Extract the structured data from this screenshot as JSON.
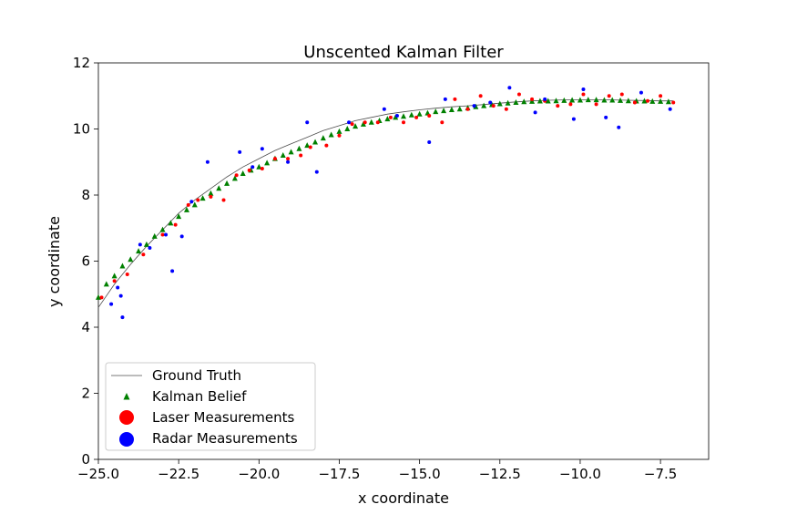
{
  "chart_data": {
    "type": "scatter",
    "title": "Unscented Kalman Filter",
    "xlabel": "x coordinate",
    "ylabel": "y coordinate",
    "xlim": [
      -25,
      -6
    ],
    "ylim": [
      0,
      12
    ],
    "xticks": [
      -25.0,
      -22.5,
      -20.0,
      -17.5,
      -15.0,
      -12.5,
      -10.0,
      -7.5
    ],
    "xtick_labels": [
      "−25.0",
      "−22.5",
      "−20.0",
      "−17.5",
      "−15.0",
      "−12.5",
      "−10.0",
      "−7.5"
    ],
    "yticks": [
      0,
      2,
      4,
      6,
      8,
      10,
      12
    ],
    "ytick_labels": [
      "0",
      "2",
      "4",
      "6",
      "8",
      "10",
      "12"
    ],
    "grid": false,
    "legend_position": "lower-left",
    "colors": {
      "ground_truth": "#4d4d4d",
      "kalman": "#008000",
      "laser": "#ff0000",
      "radar": "#0000ff"
    },
    "series": [
      {
        "name": "Ground Truth",
        "type": "line",
        "x": [
          -25.0,
          -24.5,
          -24.0,
          -23.5,
          -23.0,
          -22.5,
          -22.0,
          -21.5,
          -21.0,
          -20.5,
          -20.0,
          -19.5,
          -19.0,
          -18.5,
          -18.0,
          -17.5,
          -17.0,
          -16.5,
          -16.0,
          -15.5,
          -15.0,
          -14.5,
          -14.0,
          -13.5,
          -13.0,
          -12.5,
          -12.0,
          -11.5,
          -11.0,
          -10.5,
          -10.0,
          -9.5,
          -9.0,
          -8.5,
          -8.0,
          -7.5,
          -7.1
        ],
        "y": [
          4.6,
          5.3,
          5.9,
          6.45,
          6.95,
          7.45,
          7.85,
          8.2,
          8.55,
          8.85,
          9.1,
          9.35,
          9.55,
          9.75,
          9.95,
          10.1,
          10.25,
          10.35,
          10.45,
          10.52,
          10.58,
          10.63,
          10.67,
          10.7,
          10.74,
          10.78,
          10.82,
          10.85,
          10.87,
          10.88,
          10.88,
          10.88,
          10.88,
          10.87,
          10.86,
          10.85,
          10.85
        ]
      },
      {
        "name": "Kalman Belief",
        "type": "scatter",
        "marker": "triangle",
        "x": [
          -25.0,
          -24.75,
          -24.5,
          -24.25,
          -24.0,
          -23.75,
          -23.5,
          -23.25,
          -23.0,
          -22.75,
          -22.5,
          -22.25,
          -22.0,
          -21.75,
          -21.5,
          -21.25,
          -21.0,
          -20.75,
          -20.5,
          -20.25,
          -20.0,
          -19.75,
          -19.5,
          -19.25,
          -19.0,
          -18.75,
          -18.5,
          -18.25,
          -18.0,
          -17.75,
          -17.5,
          -17.25,
          -17.0,
          -16.75,
          -16.5,
          -16.25,
          -16.0,
          -15.75,
          -15.5,
          -15.25,
          -15.0,
          -14.75,
          -14.5,
          -14.25,
          -14.0,
          -13.75,
          -13.5,
          -13.25,
          -13.0,
          -12.75,
          -12.5,
          -12.25,
          -12.0,
          -11.75,
          -11.5,
          -11.25,
          -11.0,
          -10.75,
          -10.5,
          -10.25,
          -10.0,
          -9.75,
          -9.5,
          -9.25,
          -9.0,
          -8.75,
          -8.5,
          -8.25,
          -8.0,
          -7.75,
          -7.5,
          -7.25
        ],
        "y": [
          4.9,
          5.3,
          5.55,
          5.85,
          6.05,
          6.3,
          6.5,
          6.75,
          6.95,
          7.15,
          7.35,
          7.55,
          7.7,
          7.9,
          8.05,
          8.2,
          8.35,
          8.5,
          8.65,
          8.75,
          8.85,
          8.97,
          9.1,
          9.2,
          9.3,
          9.4,
          9.5,
          9.6,
          9.72,
          9.82,
          9.92,
          10.0,
          10.08,
          10.14,
          10.2,
          10.25,
          10.3,
          10.35,
          10.38,
          10.42,
          10.45,
          10.48,
          10.52,
          10.55,
          10.58,
          10.6,
          10.63,
          10.67,
          10.7,
          10.73,
          10.76,
          10.78,
          10.8,
          10.82,
          10.83,
          10.84,
          10.84,
          10.85,
          10.86,
          10.87,
          10.87,
          10.88,
          10.88,
          10.87,
          10.87,
          10.86,
          10.85,
          10.84,
          10.84,
          10.83,
          10.83,
          10.82
        ]
      },
      {
        "name": "Laser Measurements",
        "type": "scatter",
        "marker": "dot",
        "x": [
          -24.9,
          -24.5,
          -24.1,
          -23.6,
          -23.0,
          -22.6,
          -22.2,
          -21.9,
          -21.5,
          -21.1,
          -20.7,
          -20.3,
          -19.9,
          -19.5,
          -19.1,
          -18.7,
          -18.4,
          -17.9,
          -17.5,
          -17.1,
          -16.7,
          -16.3,
          -15.9,
          -15.5,
          -15.1,
          -14.7,
          -14.3,
          -13.9,
          -13.5,
          -13.1,
          -12.7,
          -12.3,
          -11.9,
          -11.5,
          -11.1,
          -10.7,
          -10.3,
          -9.9,
          -9.5,
          -9.1,
          -8.7,
          -8.3,
          -7.9,
          -7.5,
          -7.1
        ],
        "y": [
          4.9,
          5.4,
          5.6,
          6.2,
          6.8,
          7.1,
          7.7,
          7.85,
          7.95,
          7.85,
          8.6,
          8.75,
          8.8,
          9.1,
          9.1,
          9.2,
          9.45,
          9.5,
          9.8,
          10.15,
          10.2,
          10.2,
          10.35,
          10.2,
          10.35,
          10.4,
          10.2,
          10.9,
          10.6,
          11.0,
          10.7,
          10.6,
          11.05,
          10.9,
          10.85,
          10.7,
          10.75,
          11.05,
          10.75,
          11.0,
          11.05,
          10.8,
          10.85,
          11.0,
          10.8
        ]
      },
      {
        "name": "Radar Measurements",
        "type": "scatter",
        "marker": "dot",
        "x": [
          -24.6,
          -24.4,
          -24.3,
          -24.25,
          -23.7,
          -23.4,
          -22.9,
          -22.7,
          -22.4,
          -22.1,
          -21.6,
          -20.6,
          -20.2,
          -19.9,
          -19.1,
          -18.5,
          -18.2,
          -17.2,
          -16.1,
          -15.7,
          -14.7,
          -14.2,
          -13.3,
          -12.8,
          -12.2,
          -11.4,
          -11.1,
          -10.2,
          -9.9,
          -9.2,
          -8.8,
          -8.1,
          -7.2
        ],
        "y": [
          4.7,
          5.2,
          4.95,
          4.3,
          6.5,
          6.4,
          6.8,
          5.7,
          6.75,
          7.8,
          9.0,
          9.3,
          8.85,
          9.4,
          9.0,
          10.2,
          8.7,
          10.2,
          10.6,
          10.4,
          9.6,
          10.9,
          10.7,
          10.8,
          11.25,
          10.5,
          10.9,
          10.3,
          11.2,
          10.35,
          10.05,
          11.1,
          10.6
        ]
      }
    ]
  }
}
